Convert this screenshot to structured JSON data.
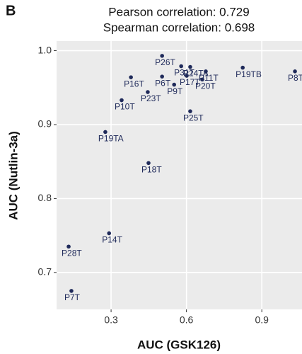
{
  "chart_data": {
    "type": "scatter",
    "panel": "B",
    "title": "Pearson correlation: 0.729",
    "subtitle": "Spearman correlation: 0.698",
    "x_label": "AUC (GSK126)",
    "y_label": "AUC (Nutlin-3a)",
    "color": "#1f2a5a",
    "background": "#ebebeb",
    "grid": true,
    "xlim": [
      0.083,
      1.06
    ],
    "ylim": [
      0.65,
      1.013
    ],
    "xticks": [
      0.3,
      0.6,
      0.9
    ],
    "yticks": [
      {
        "value": 1,
        "label": "1.0"
      },
      0.9,
      0.8,
      0.7
    ],
    "labels": [
      "P26T",
      "P31T",
      "P24TA",
      "P11T",
      "P19TB",
      "P8T",
      "P16T",
      "P6T",
      "P17T",
      "P20T",
      "P9T",
      "P23T",
      "P10T",
      "P25T",
      "P19TA",
      "P18T",
      "P14T",
      "P28T",
      "P7T"
    ],
    "x": [
      0.503,
      0.579,
      0.615,
      0.677,
      0.824,
      1.032,
      0.379,
      0.503,
      0.601,
      0.663,
      0.551,
      0.446,
      0.342,
      0.615,
      0.277,
      0.449,
      0.292,
      0.131,
      0.142
    ],
    "values": [
      0.993,
      0.979,
      0.978,
      0.972,
      0.977,
      0.972,
      0.964,
      0.965,
      0.966,
      0.961,
      0.954,
      0.944,
      0.933,
      0.918,
      0.89,
      0.848,
      0.753,
      0.735,
      0.675
    ]
  }
}
